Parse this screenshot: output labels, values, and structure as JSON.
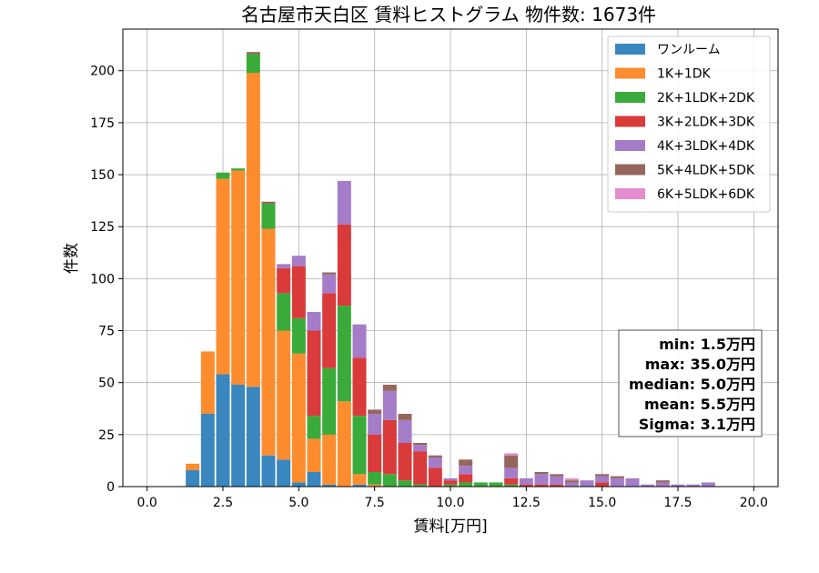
{
  "chart_data": {
    "type": "bar",
    "stacked": true,
    "title": "名古屋市天白区 賃料ヒストグラム 物件数: 1673件",
    "xlabel": "賃料[万円]",
    "ylabel": "件数",
    "xlim": [
      -0.8,
      20.8
    ],
    "ylim": [
      0,
      220
    ],
    "xticks": [
      0.0,
      2.5,
      5.0,
      7.5,
      10.0,
      12.5,
      15.0,
      17.5,
      20.0
    ],
    "xtick_labels": [
      "0.0",
      "2.5",
      "5.0",
      "7.5",
      "10.0",
      "12.5",
      "15.0",
      "17.5",
      "20.0"
    ],
    "yticks": [
      0,
      25,
      50,
      75,
      100,
      125,
      150,
      175,
      200
    ],
    "ytick_labels": [
      "0",
      "25",
      "50",
      "75",
      "100",
      "125",
      "150",
      "175",
      "200"
    ],
    "grid": true,
    "legend_position": "top-right",
    "bin_width": 0.5,
    "x": [
      1.5,
      2.0,
      2.5,
      3.0,
      3.5,
      4.0,
      4.5,
      5.0,
      5.5,
      6.0,
      6.5,
      7.0,
      7.5,
      8.0,
      8.5,
      9.0,
      9.5,
      10.0,
      10.5,
      11.0,
      11.5,
      12.0,
      12.5,
      13.0,
      13.5,
      14.0,
      14.5,
      15.0,
      15.5,
      16.0,
      16.5,
      17.0,
      17.5,
      18.0,
      18.5
    ],
    "series": [
      {
        "name": "ワンルーム",
        "color": "#3a86be",
        "values": [
          8,
          35,
          54,
          49,
          48,
          15,
          13,
          2,
          7,
          1,
          0,
          1,
          0,
          0,
          0,
          0,
          0,
          0,
          0,
          0,
          0,
          0,
          0,
          0,
          0,
          0,
          0,
          0,
          0,
          0,
          0,
          0,
          0,
          0,
          0
        ]
      },
      {
        "name": "1K+1DK",
        "color": "#fd8c2f",
        "values": [
          3,
          30,
          94,
          103,
          151,
          109,
          62,
          62,
          16,
          24,
          41,
          5,
          1,
          0,
          0,
          0,
          0,
          0,
          0,
          0,
          0,
          0,
          0,
          0,
          0,
          0,
          0,
          0,
          0,
          0,
          0,
          0,
          0,
          0,
          0
        ]
      },
      {
        "name": "2K+1LDK+2DK",
        "color": "#3aab3a",
        "values": [
          0,
          0,
          3,
          1,
          9,
          12,
          18,
          17,
          11,
          32,
          46,
          28,
          6,
          6,
          3,
          1,
          0,
          1,
          2,
          2,
          2,
          1,
          0,
          0,
          0,
          0,
          0,
          0,
          0,
          0,
          0,
          0,
          0,
          0,
          0
        ]
      },
      {
        "name": "3K+2LDK+3DK",
        "color": "#d93a3a",
        "values": [
          0,
          0,
          0,
          0,
          0,
          0,
          12,
          25,
          41,
          36,
          39,
          28,
          18,
          26,
          18,
          16,
          9,
          2,
          4,
          0,
          0,
          3,
          1,
          1,
          1,
          0,
          0,
          2,
          0,
          0,
          0,
          0,
          0,
          0,
          0
        ]
      },
      {
        "name": "4K+3LDK+4DK",
        "color": "#a57cc8",
        "values": [
          0,
          0,
          0,
          0,
          0,
          0,
          2,
          5,
          9,
          9,
          21,
          16,
          10,
          14,
          11,
          3,
          5,
          1,
          4,
          0,
          0,
          5,
          3,
          5,
          4,
          2,
          3,
          3,
          4,
          4,
          1,
          2,
          1,
          1,
          2
        ]
      },
      {
        "name": "5K+4LDK+5DK",
        "color": "#95675c",
        "values": [
          0,
          0,
          0,
          0,
          1,
          1,
          0,
          0,
          0,
          1,
          0,
          0,
          2,
          3,
          3,
          1,
          1,
          0,
          3,
          0,
          0,
          6,
          0,
          1,
          1,
          1,
          0,
          1,
          1,
          0,
          0,
          1,
          0,
          0,
          0
        ]
      },
      {
        "name": "6K+5LDK+6DK",
        "color": "#e58cce",
        "values": [
          0,
          0,
          0,
          0,
          0,
          0,
          0,
          0,
          0,
          0,
          0,
          0,
          0,
          0,
          0,
          0,
          0,
          0,
          0,
          0,
          0,
          1,
          0,
          0,
          0,
          1,
          0,
          0,
          0,
          0,
          0,
          0,
          0,
          0,
          0
        ]
      }
    ],
    "stats": {
      "min": "min: 1.5万円",
      "max": "max: 35.0万円",
      "median": "median: 5.0万円",
      "mean": "mean: 5.5万円",
      "sigma": "Sigma: 3.1万円"
    }
  }
}
